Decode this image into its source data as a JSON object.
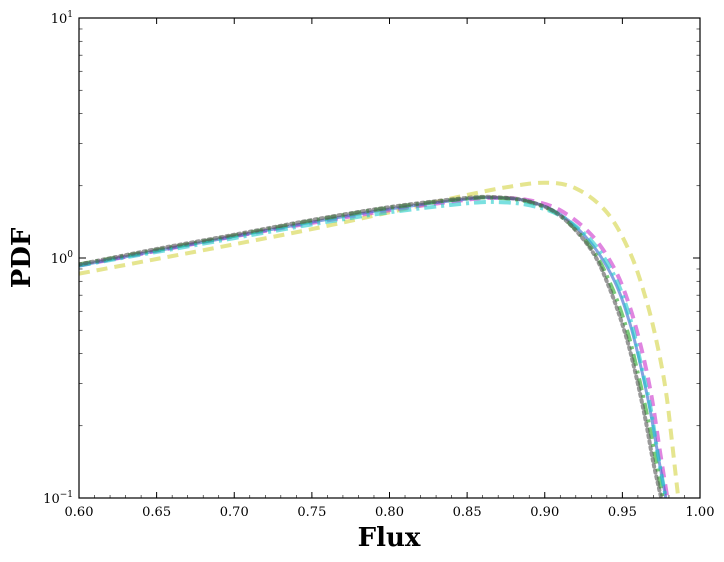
{
  "chart_data": {
    "type": "line",
    "title": "",
    "xlabel": "Flux",
    "ylabel": "PDF",
    "xlim": [
      0.6,
      1.0
    ],
    "ylim": [
      0.1,
      10
    ],
    "yscale": "log",
    "grid": false,
    "x_ticks": [
      "0.60",
      "0.65",
      "0.70",
      "0.75",
      "0.80",
      "0.85",
      "0.90",
      "0.95",
      "1.00"
    ],
    "y_ticks": [
      {
        "base": "10",
        "exp": "−1",
        "value": 0.1
      },
      {
        "base": "10",
        "exp": "0",
        "value": 1
      },
      {
        "base": "10",
        "exp": "1",
        "value": 10
      }
    ],
    "series": [
      {
        "color": "#d4d444",
        "style": "dashed",
        "x": [
          0.6,
          0.65,
          0.7,
          0.75,
          0.8,
          0.85,
          0.875,
          0.9,
          0.92,
          0.94,
          0.955,
          0.965,
          0.972,
          0.978,
          0.982,
          0.986
        ],
        "y": [
          0.86,
          0.99,
          1.14,
          1.32,
          1.55,
          1.83,
          1.97,
          2.06,
          1.95,
          1.55,
          1.05,
          0.68,
          0.45,
          0.28,
          0.17,
          0.1
        ]
      },
      {
        "color": "#cc33cc",
        "style": "dashed",
        "x": [
          0.6,
          0.65,
          0.7,
          0.75,
          0.8,
          0.85,
          0.87,
          0.89,
          0.91,
          0.93,
          0.945,
          0.955,
          0.963,
          0.969,
          0.974,
          0.979
        ],
        "y": [
          0.93,
          1.07,
          1.23,
          1.4,
          1.58,
          1.75,
          1.78,
          1.74,
          1.58,
          1.25,
          0.9,
          0.62,
          0.4,
          0.26,
          0.16,
          0.1
        ]
      },
      {
        "color": "#3366cc",
        "style": "solid",
        "x": [
          0.6,
          0.65,
          0.7,
          0.75,
          0.8,
          0.85,
          0.87,
          0.89,
          0.91,
          0.93,
          0.945,
          0.955,
          0.962,
          0.968,
          0.973,
          0.978
        ],
        "y": [
          0.93,
          1.07,
          1.23,
          1.41,
          1.6,
          1.76,
          1.78,
          1.72,
          1.52,
          1.15,
          0.8,
          0.53,
          0.35,
          0.23,
          0.15,
          0.1
        ]
      },
      {
        "color": "#22aa22",
        "style": "dashdot",
        "x": [
          0.6,
          0.65,
          0.7,
          0.75,
          0.8,
          0.85,
          0.87,
          0.89,
          0.91,
          0.93,
          0.943,
          0.953,
          0.96,
          0.966,
          0.971,
          0.976
        ],
        "y": [
          0.94,
          1.08,
          1.24,
          1.43,
          1.62,
          1.77,
          1.78,
          1.71,
          1.5,
          1.1,
          0.76,
          0.5,
          0.33,
          0.22,
          0.15,
          0.1
        ]
      },
      {
        "color": "#22cccc",
        "style": "dashdot",
        "x": [
          0.6,
          0.65,
          0.7,
          0.75,
          0.8,
          0.85,
          0.87,
          0.89,
          0.91,
          0.93,
          0.945,
          0.955,
          0.962,
          0.968,
          0.973,
          0.978
        ],
        "y": [
          0.93,
          1.06,
          1.21,
          1.38,
          1.55,
          1.69,
          1.71,
          1.66,
          1.5,
          1.18,
          0.84,
          0.56,
          0.36,
          0.24,
          0.15,
          0.1
        ]
      },
      {
        "color": "#555555",
        "style": "dotted",
        "x": [
          0.6,
          0.65,
          0.7,
          0.75,
          0.8,
          0.85,
          0.87,
          0.89,
          0.91,
          0.93,
          0.942,
          0.952,
          0.959,
          0.965,
          0.97,
          0.975
        ],
        "y": [
          0.94,
          1.09,
          1.25,
          1.44,
          1.63,
          1.78,
          1.79,
          1.72,
          1.5,
          1.08,
          0.74,
          0.48,
          0.32,
          0.21,
          0.14,
          0.1
        ]
      }
    ]
  }
}
